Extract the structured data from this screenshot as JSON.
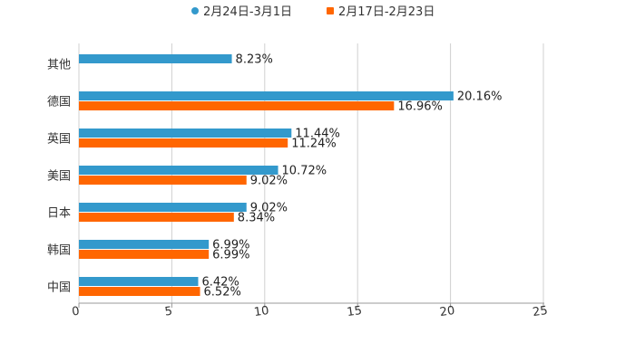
{
  "chart_data": {
    "type": "bar",
    "orientation": "horizontal",
    "title": "",
    "xlabel": "",
    "ylabel": "",
    "xlim": [
      0,
      25
    ],
    "x_ticks": [
      "0",
      "5",
      "10",
      "15",
      "20",
      "25"
    ],
    "grid": true,
    "legend_position": "top-center",
    "categories": [
      "其他",
      "德国",
      "英国",
      "美国",
      "日本",
      "韩国",
      "中国"
    ],
    "series": [
      {
        "name": "2月24日-3月1日",
        "color": "#3399cc",
        "marker": "circle",
        "values": [
          8.23,
          20.16,
          11.44,
          10.72,
          9.02,
          6.99,
          6.42
        ],
        "labels": [
          "8.23%",
          "20.16%",
          "11.44%",
          "10.72%",
          "9.02%",
          "6.99%",
          "6.42%"
        ]
      },
      {
        "name": "2月17日-2月23日",
        "color": "#ff6600",
        "marker": "square",
        "values": [
          null,
          16.96,
          11.24,
          9.02,
          8.34,
          6.99,
          6.52
        ],
        "labels": [
          null,
          "16.96%",
          "11.24%",
          "9.02%",
          "8.34%",
          "6.99%",
          "6.52%"
        ]
      }
    ]
  }
}
